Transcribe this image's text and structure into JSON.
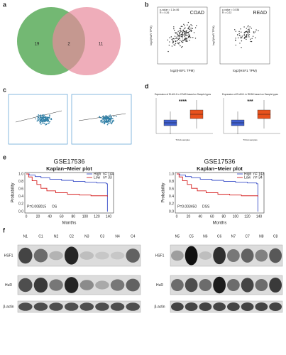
{
  "panels": {
    "a": {
      "label": "a",
      "counts": [
        "19",
        "2",
        "11"
      ]
    },
    "b": {
      "label": "b",
      "plots": [
        {
          "title": "COAD",
          "stats": [
            "p-value = 1.1e-06",
            "R = 0.26"
          ]
        },
        {
          "title": "READ",
          "stats": [
            "p-value = 0.036",
            "R = 0.22"
          ]
        }
      ],
      "y_label": "log2(HuR TPM)",
      "x_label": "log2(HSF1 TPM)"
    },
    "c": {
      "label": "c"
    },
    "d": {
      "label": "d",
      "plots": [
        {
          "title": "Expression of ELAVL1 in COAD based on Sample types",
          "signif": "****"
        },
        {
          "title": "Expression of ELAVL1 in READ based on Sample types",
          "signif": "***"
        }
      ],
      "x_label": "TCGA samples"
    },
    "e": {
      "label": "e",
      "plots": [
        {
          "dataset": "GSE17536",
          "title": "Kaplan−Meier plot",
          "high": "n= 144",
          "low": "n= 33",
          "p": "P=0.008015",
          "endpoint": "OS"
        },
        {
          "dataset": "GSE17536",
          "title": "Kaplan−Meier plot",
          "high": "n= 143",
          "low": "n= 34",
          "p": "P=0.003450",
          "endpoint": "DSS"
        }
      ],
      "legend": [
        "High",
        "Low"
      ],
      "y_label": "Probability",
      "x_label": "Months",
      "xticks": [
        "0",
        "20",
        "40",
        "60",
        "80",
        "100",
        "120",
        "140"
      ],
      "yticks": [
        "0.0",
        "0.2",
        "0.4",
        "0.6",
        "0.8",
        "1.0"
      ]
    },
    "f": {
      "label": "f",
      "blots": [
        {
          "lanes": [
            "N1",
            "C1",
            "N2",
            "C2",
            "N3",
            "C3",
            "N4",
            "C4"
          ]
        },
        {
          "lanes": [
            "N5",
            "C5",
            "N6",
            "C6",
            "N7",
            "C7",
            "N8",
            "C8"
          ]
        }
      ],
      "rows": [
        "HSF1",
        "HuR",
        "β-actin"
      ]
    }
  }
}
